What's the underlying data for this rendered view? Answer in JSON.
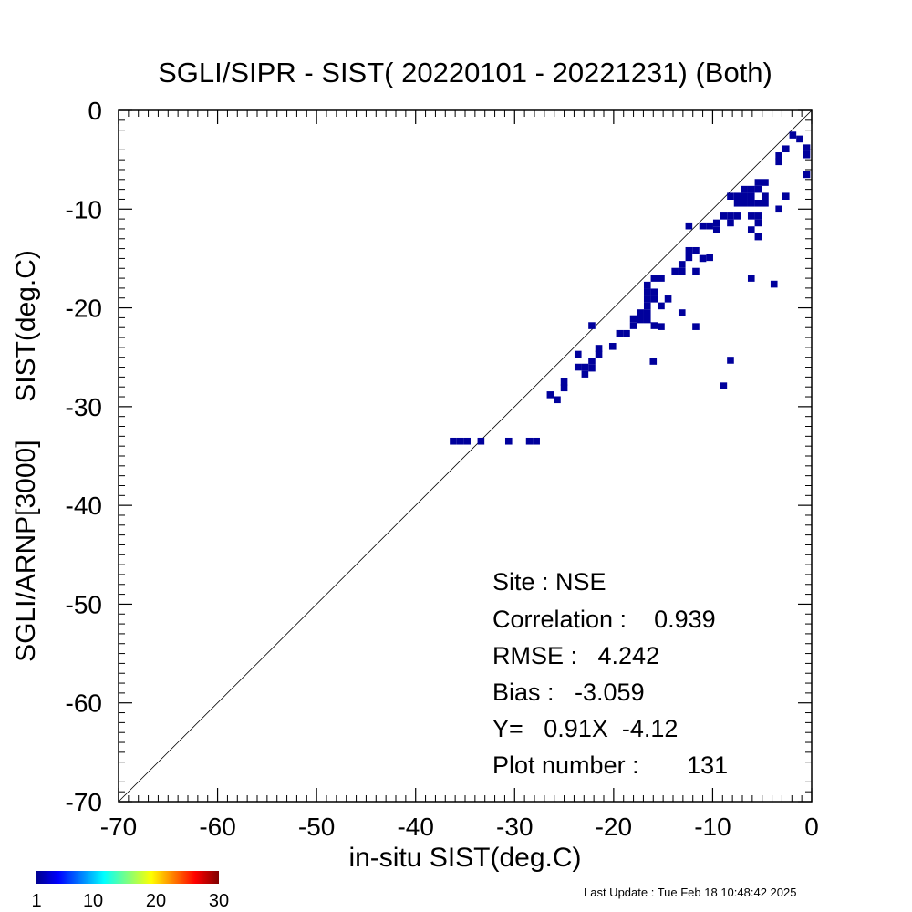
{
  "chart_data": {
    "type": "heatmap",
    "title": "SGLI/SIPR - SIST( 20220101 - 20221231) (Both)",
    "xlabel": "in-situ SIST(deg.C)",
    "ylabel": "SGLI/ARNP[3000]     SIST(deg.C)",
    "xlim": [
      -70,
      0
    ],
    "ylim": [
      -70,
      0
    ],
    "x_ticks": [
      -70,
      -60,
      -50,
      -40,
      -30,
      -20,
      -10,
      0
    ],
    "y_ticks": [
      -70,
      -60,
      -50,
      -40,
      -30,
      -20,
      -10,
      0
    ],
    "reference_line": "1:1",
    "bin_size": 0.7,
    "points": [
      [
        -36.2,
        -33.5
      ],
      [
        -35.5,
        -33.5
      ],
      [
        -34.8,
        -33.5
      ],
      [
        -33.4,
        -33.5
      ],
      [
        -30.6,
        -33.5
      ],
      [
        -28.5,
        -33.5
      ],
      [
        -27.8,
        -33.5
      ],
      [
        -26.4,
        -28.8
      ],
      [
        -25.7,
        -29.3
      ],
      [
        -25.0,
        -28.1
      ],
      [
        -25.0,
        -27.5
      ],
      [
        -23.6,
        -24.7
      ],
      [
        -23.6,
        -26.0
      ],
      [
        -22.9,
        -26.0
      ],
      [
        -22.9,
        -26.7
      ],
      [
        -22.2,
        -25.4
      ],
      [
        -22.2,
        -26.1
      ],
      [
        -22.2,
        -21.8
      ],
      [
        -21.5,
        -24.1
      ],
      [
        -21.5,
        -24.7
      ],
      [
        -20.1,
        -23.9
      ],
      [
        -19.4,
        -22.6
      ],
      [
        -18.7,
        -22.6
      ],
      [
        -18.0,
        -21.8
      ],
      [
        -18.0,
        -21.1
      ],
      [
        -17.3,
        -21.2
      ],
      [
        -16.6,
        -21.2
      ],
      [
        -17.3,
        -20.5
      ],
      [
        -16.6,
        -20.5
      ],
      [
        -16.6,
        -19.8
      ],
      [
        -16.6,
        -19.1
      ],
      [
        -16.6,
        -18.4
      ],
      [
        -16.6,
        -17.7
      ],
      [
        -15.9,
        -19.1
      ],
      [
        -15.9,
        -18.4
      ],
      [
        -15.9,
        -17.0
      ],
      [
        -15.2,
        -17.0
      ],
      [
        -15.9,
        -21.8
      ],
      [
        -15.2,
        -19.8
      ],
      [
        -15.2,
        -21.9
      ],
      [
        -14.5,
        -19.1
      ],
      [
        -16.0,
        -25.4
      ],
      [
        -13.8,
        -16.3
      ],
      [
        -13.1,
        -16.3
      ],
      [
        -13.1,
        -15.6
      ],
      [
        -13.1,
        -20.5
      ],
      [
        -12.4,
        -14.9
      ],
      [
        -12.4,
        -14.2
      ],
      [
        -11.7,
        -16.3
      ],
      [
        -11.7,
        -14.2
      ],
      [
        -12.4,
        -11.7
      ],
      [
        -11.7,
        -21.9
      ],
      [
        -11.0,
        -11.7
      ],
      [
        -11.0,
        -15.0
      ],
      [
        -10.3,
        -11.7
      ],
      [
        -10.3,
        -14.9
      ],
      [
        -9.6,
        -11.4
      ],
      [
        -9.6,
        -12.1
      ],
      [
        -8.9,
        -10.7
      ],
      [
        -8.2,
        -10.7
      ],
      [
        -7.5,
        -10.7
      ],
      [
        -8.2,
        -11.4
      ],
      [
        -8.2,
        -8.7
      ],
      [
        -7.5,
        -8.7
      ],
      [
        -6.8,
        -8.7
      ],
      [
        -6.1,
        -8.7
      ],
      [
        -7.5,
        -9.4
      ],
      [
        -6.8,
        -9.4
      ],
      [
        -6.1,
        -9.4
      ],
      [
        -6.8,
        -8.0
      ],
      [
        -6.1,
        -8.0
      ],
      [
        -5.4,
        -8.0
      ],
      [
        -5.4,
        -7.3
      ],
      [
        -4.7,
        -7.3
      ],
      [
        -6.1,
        -10.7
      ],
      [
        -5.4,
        -10.7
      ],
      [
        -5.4,
        -9.4
      ],
      [
        -5.4,
        -11.4
      ],
      [
        -4.7,
        -8.7
      ],
      [
        -4.7,
        -9.4
      ],
      [
        -6.1,
        -12.1
      ],
      [
        -5.4,
        -12.8
      ],
      [
        -6.1,
        -17.0
      ],
      [
        -8.9,
        -27.9
      ],
      [
        -8.2,
        -25.3
      ],
      [
        -3.8,
        -17.6
      ],
      [
        -3.3,
        -10.0
      ],
      [
        -2.6,
        -8.7
      ],
      [
        -3.3,
        -5.2
      ],
      [
        -3.3,
        -4.6
      ],
      [
        -2.6,
        -3.9
      ],
      [
        -1.9,
        -2.5
      ],
      [
        -1.2,
        -2.9
      ],
      [
        -0.5,
        -3.8
      ],
      [
        -0.5,
        -4.5
      ],
      [
        -0.5,
        -6.5
      ]
    ],
    "point_color": "#00009c",
    "colorbar": {
      "ticks": [
        "1",
        "10",
        "20",
        "30"
      ],
      "min": 1,
      "max": 30
    }
  },
  "stats": {
    "site": "Site : NSE",
    "correlation": "Correlation :    0.939",
    "rmse": "RMSE :   4.242",
    "bias": "Bias :   -3.059",
    "regression": "Y=   0.91X  -4.12",
    "plot_number": "Plot number :       131"
  },
  "footer": {
    "last_update": "Last Update : Tue Feb 18 10:48:42 2025"
  }
}
